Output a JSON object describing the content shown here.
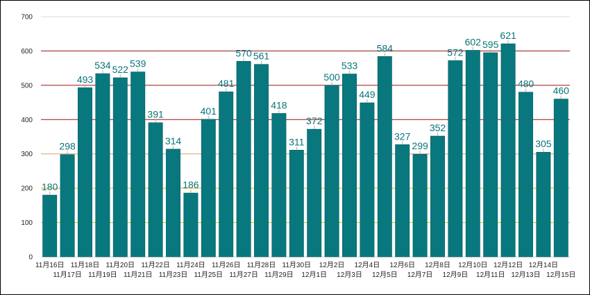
{
  "chart_data": {
    "type": "bar",
    "categories": [
      "11月16日",
      "11月17日",
      "11月18日",
      "11月19日",
      "11月20日",
      "11月21日",
      "11月22日",
      "11月23日",
      "11月24日",
      "11月25日",
      "11月26日",
      "11月27日",
      "11月28日",
      "11月29日",
      "11月30日",
      "12月1日",
      "12月2日",
      "12月3日",
      "12月4日",
      "12月5日",
      "12月6日",
      "12月7日",
      "12月8日",
      "12月9日",
      "12月10日",
      "12月11日",
      "12月12日",
      "12月13日",
      "12月14日",
      "12月15日"
    ],
    "values": [
      180,
      298,
      493,
      534,
      522,
      539,
      391,
      314,
      186,
      401,
      481,
      570,
      561,
      418,
      311,
      372,
      500,
      533,
      449,
      584,
      327,
      299,
      352,
      572,
      602,
      595,
      621,
      480,
      305,
      460
    ],
    "ylim": [
      0,
      700
    ],
    "yticks": [
      0,
      100,
      200,
      300,
      400,
      500,
      600,
      700
    ],
    "title": "",
    "xlabel": "",
    "ylabel": "",
    "grid": true,
    "legend": "none",
    "colors": {
      "bar": "#08787e",
      "bar_edge": "#055a5f",
      "label": "#08747a",
      "grid_default": "#d9d9d9",
      "grid_100": "#c8c800",
      "grid_200": "#e0b800",
      "grid_300": "#d4a070",
      "grid_400": "#9a1010",
      "grid_500": "#9a1010",
      "grid_600": "#8a1a1a"
    }
  }
}
